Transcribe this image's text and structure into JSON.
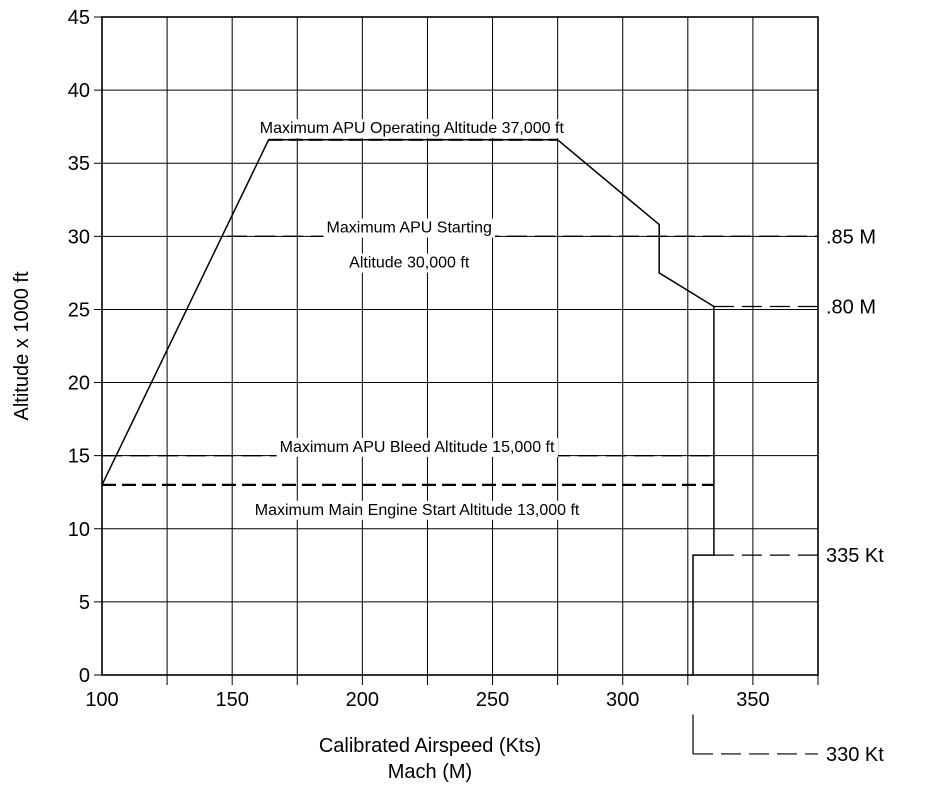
{
  "chart_data": {
    "type": "line",
    "xlabel": "Calibrated Airspeed (Kts)",
    "xlabel2": "Mach (M)",
    "ylabel": "Altitude x 1000 ft",
    "xlim": [
      100,
      375
    ],
    "ylim": [
      0,
      45
    ],
    "x_ticks": [
      100,
      150,
      200,
      250,
      300,
      350
    ],
    "y_ticks": [
      0,
      5,
      10,
      15,
      20,
      25,
      30,
      35,
      40,
      45
    ],
    "grid": true,
    "series": [
      {
        "style": "solid",
        "points": [
          [
            100,
            13
          ],
          [
            164,
            36.6
          ],
          [
            275,
            36.6
          ],
          [
            314,
            30.8
          ],
          [
            314,
            27.5
          ],
          [
            335,
            25.2
          ],
          [
            335,
            8.2
          ],
          [
            327,
            8.2
          ],
          [
            327,
            0
          ]
        ]
      }
    ],
    "annotations": [
      {
        "text": "Maximum APU Operating Altitude 37,000 ft",
        "x": 219,
        "y": 37.4
      },
      {
        "text": "Maximum APU Starting",
        "x": 218,
        "y": 30.6
      },
      {
        "text": "Altitude 30,000 ft",
        "x": 218,
        "y": 28.2
      },
      {
        "text": "Maximum APU Bleed Altitude 15,000 ft",
        "x": 221,
        "y": 15.6
      },
      {
        "text": "Maximum Main Engine Start Altitude 13,000 ft",
        "x": 221,
        "y": 11.3
      }
    ],
    "reference_lines": [
      {
        "from": [
          164,
          36.6
        ],
        "to": [
          275,
          36.6
        ],
        "style": "dashed"
      },
      {
        "from": [
          148,
          30
        ],
        "to": [
          375,
          30
        ],
        "style": "dashed",
        "right_label": ".85 M"
      },
      {
        "from": [
          335,
          25.2
        ],
        "to": [
          375,
          25.2
        ],
        "style": "dashed",
        "right_label": ".80 M"
      },
      {
        "from": [
          100,
          15
        ],
        "to": [
          335,
          15
        ],
        "style": "dashed"
      },
      {
        "from": [
          100,
          13
        ],
        "to": [
          335,
          13
        ],
        "style": "dashed"
      },
      {
        "from": [
          335,
          8.2
        ],
        "to": [
          375,
          8.2
        ],
        "style": "dashed",
        "right_label": "335 Kt"
      }
    ],
    "marker_330": {
      "x": 327,
      "y_from": -2.7,
      "y_to": -5.4,
      "x_to": 375,
      "right_label": "330 Kt"
    }
  }
}
